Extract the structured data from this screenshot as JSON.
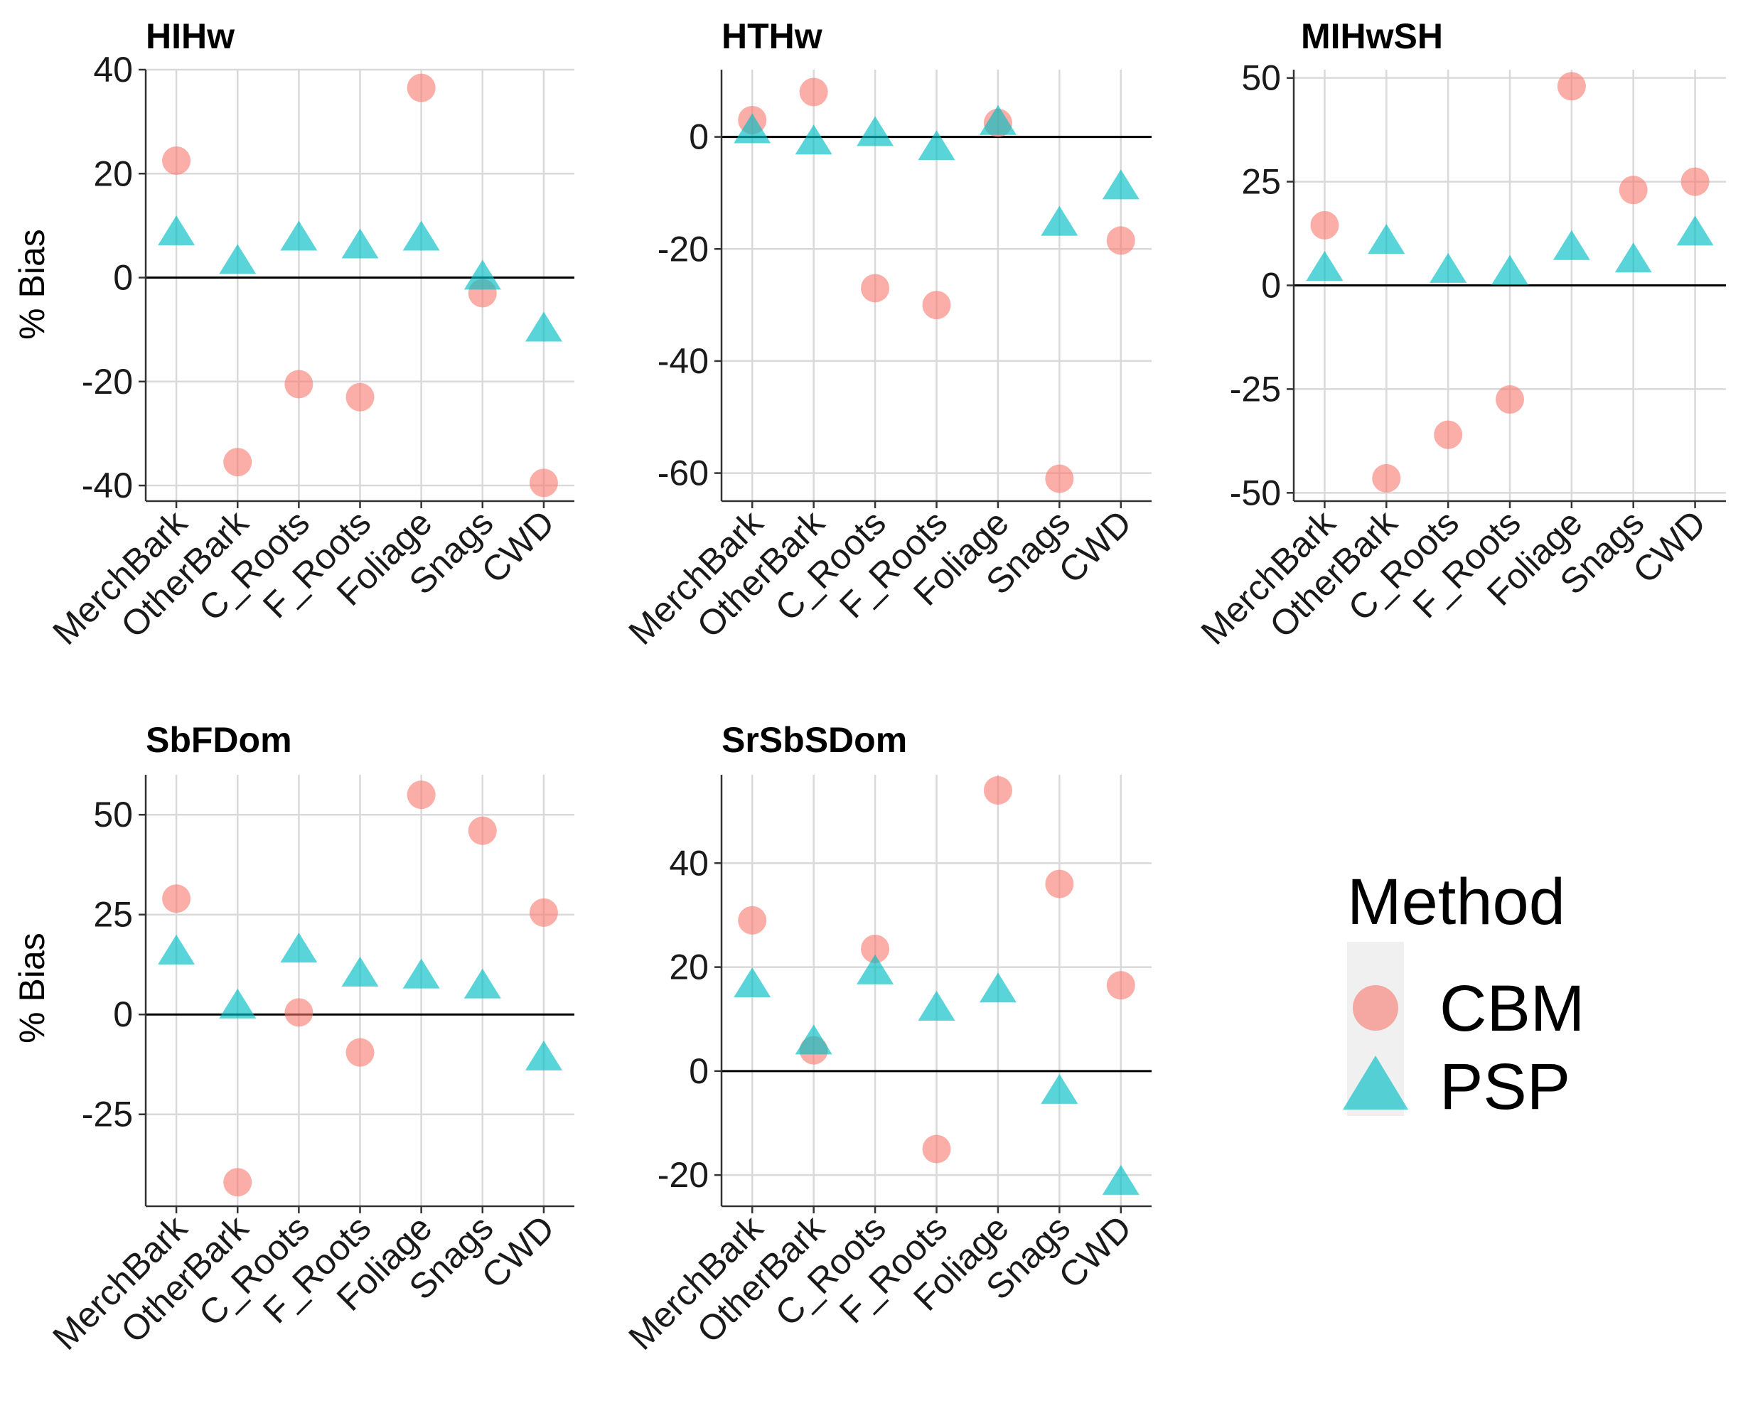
{
  "chart_data": [
    {
      "type": "scatter",
      "title": "HIHw",
      "xlabel": "",
      "ylabel": "% Bias",
      "categories": [
        "MerchBark",
        "OtherBark",
        "C_Roots",
        "F_Roots",
        "Foliage",
        "Snags",
        "CWD"
      ],
      "ylim": [
        -43,
        40
      ],
      "yticks": [
        -40,
        -20,
        0,
        20,
        40
      ],
      "series": [
        {
          "name": "CBM",
          "values": [
            22.5,
            -35.5,
            -20.5,
            -23,
            36.5,
            -3,
            -39.5
          ]
        },
        {
          "name": "PSP",
          "values": [
            8.5,
            3,
            7.5,
            6,
            7.5,
            0,
            -10
          ]
        }
      ]
    },
    {
      "type": "scatter",
      "title": "HTHw",
      "xlabel": "",
      "ylabel": "",
      "categories": [
        "MerchBark",
        "OtherBark",
        "C_Roots",
        "F_Roots",
        "Foliage",
        "Snags",
        "CWD"
      ],
      "ylim": [
        -65,
        12
      ],
      "yticks": [
        -60,
        -40,
        -20,
        0
      ],
      "series": [
        {
          "name": "CBM",
          "values": [
            3,
            8,
            -27,
            -30,
            2.5,
            -61,
            -18.5
          ]
        },
        {
          "name": "PSP",
          "values": [
            1,
            -1,
            0.5,
            -2,
            2.5,
            -15.5,
            -9
          ]
        }
      ]
    },
    {
      "type": "scatter",
      "title": "MIHwSH",
      "xlabel": "",
      "ylabel": "",
      "categories": [
        "MerchBark",
        "OtherBark",
        "C_Roots",
        "F_Roots",
        "Foliage",
        "Snags",
        "CWD"
      ],
      "ylim": [
        -52,
        52
      ],
      "yticks": [
        -50,
        -25,
        0,
        25,
        50
      ],
      "series": [
        {
          "name": "CBM",
          "values": [
            14.5,
            -46.5,
            -36,
            -27.5,
            48,
            23,
            25
          ]
        },
        {
          "name": "PSP",
          "values": [
            4,
            10.5,
            3.5,
            3,
            9,
            6,
            12.5
          ]
        }
      ]
    },
    {
      "type": "scatter",
      "title": "SbFDom",
      "xlabel": "",
      "ylabel": "% Bias",
      "categories": [
        "MerchBark",
        "OtherBark",
        "C_Roots",
        "F_Roots",
        "Foliage",
        "Snags",
        "CWD"
      ],
      "ylim": [
        -48,
        60
      ],
      "yticks": [
        -25,
        0,
        25,
        50
      ],
      "series": [
        {
          "name": "CBM",
          "values": [
            29,
            -42,
            0.5,
            -9.5,
            55,
            46,
            25.5
          ]
        },
        {
          "name": "PSP",
          "values": [
            15.5,
            2,
            16,
            10,
            9.5,
            7,
            -11
          ]
        }
      ]
    },
    {
      "type": "scatter",
      "title": "SrSbSDom",
      "xlabel": "",
      "ylabel": "",
      "categories": [
        "MerchBark",
        "OtherBark",
        "C_Roots",
        "F_Roots",
        "Foliage",
        "Snags",
        "CWD"
      ],
      "ylim": [
        -26,
        57
      ],
      "yticks": [
        -20,
        0,
        20,
        40
      ],
      "series": [
        {
          "name": "CBM",
          "values": [
            29,
            4,
            23.5,
            -15,
            54,
            36,
            16.5
          ]
        },
        {
          "name": "PSP",
          "values": [
            16.5,
            5.5,
            19,
            12,
            15.5,
            -4,
            -21.5
          ]
        }
      ]
    }
  ],
  "legend": {
    "title": "Method",
    "items": [
      {
        "label": "CBM",
        "shape": "circle",
        "color": "#f8766d"
      },
      {
        "label": "PSP",
        "shape": "triangle",
        "color": "#00bfc4"
      }
    ]
  },
  "colors": {
    "CBM": "#f8766d",
    "PSP": "#00bfc4",
    "grid": "#d9d9d9",
    "zero_line": "#000000",
    "legend_key_bg": "#f0f0f0"
  }
}
